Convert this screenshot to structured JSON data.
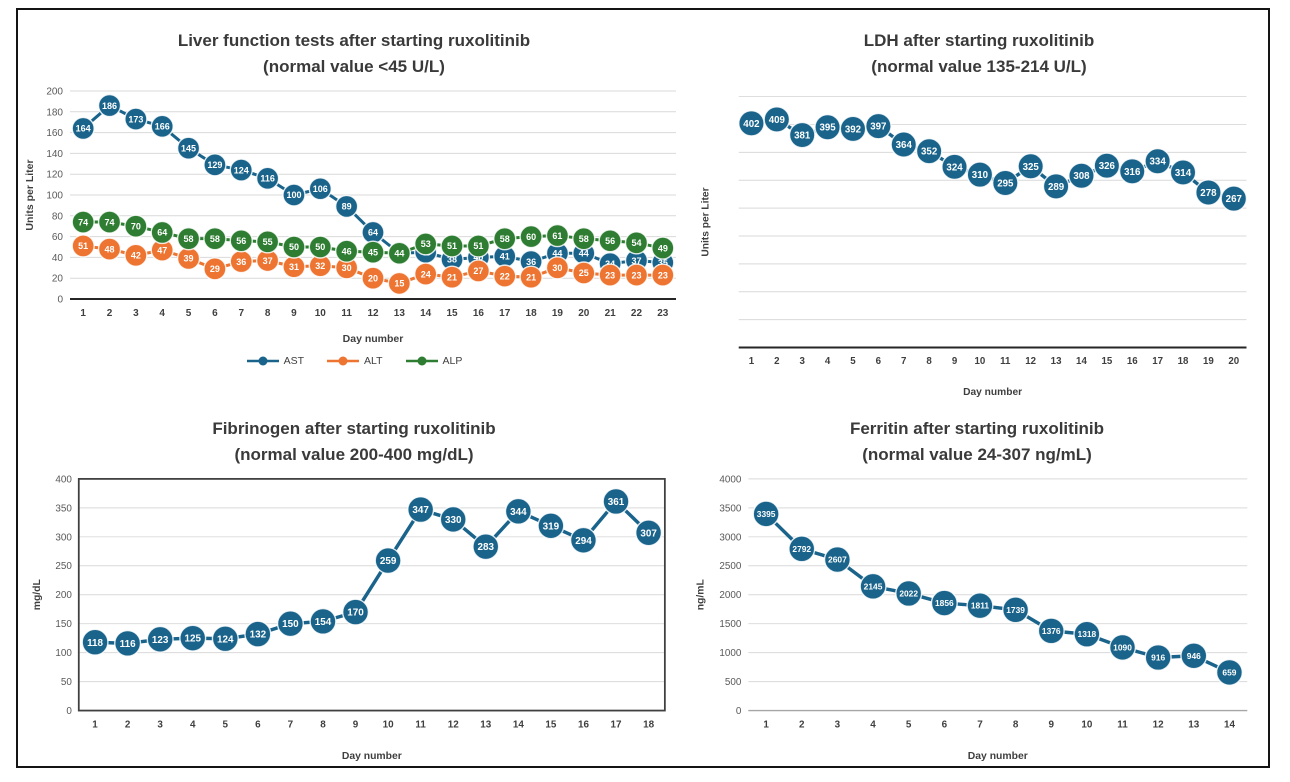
{
  "chart_data": [
    {
      "id": "liver-function",
      "type": "line",
      "title": "Liver function tests after starting ruxolitinib",
      "subtitle": "(normal value <45 U/L)",
      "xlabel": "Day number",
      "ylabel": "Units per Liter",
      "x": [
        1,
        2,
        3,
        4,
        5,
        6,
        7,
        8,
        9,
        10,
        11,
        12,
        13,
        14,
        15,
        16,
        17,
        18,
        19,
        20,
        21,
        22,
        23
      ],
      "series": [
        {
          "name": "AST",
          "color": "#1a648c",
          "values": [
            164,
            186,
            173,
            166,
            145,
            129,
            124,
            116,
            100,
            106,
            89,
            64,
            44,
            45,
            38,
            40,
            41,
            36,
            44,
            44,
            34,
            37,
            35
          ]
        },
        {
          "name": "ALT",
          "color": "#ed7431",
          "values": [
            51,
            48,
            42,
            47,
            39,
            29,
            36,
            37,
            31,
            32,
            30,
            20,
            15,
            24,
            21,
            27,
            22,
            21,
            30,
            25,
            23,
            23,
            23
          ]
        },
        {
          "name": "ALP",
          "color": "#2e7d32",
          "values": [
            74,
            74,
            70,
            64,
            58,
            58,
            56,
            55,
            50,
            50,
            46,
            45,
            44,
            53,
            51,
            51,
            58,
            60,
            61,
            58,
            56,
            54,
            49
          ]
        }
      ],
      "ylim": [
        0,
        200
      ],
      "ytick_step": 20,
      "show_ytick_labels": true,
      "grid": true,
      "legend_position": "bottom"
    },
    {
      "id": "ldh",
      "type": "line",
      "title": "LDH after starting ruxolitinib",
      "subtitle": "(normal value 135-214 U/L)",
      "xlabel": "Day number",
      "ylabel": "Units per Liter",
      "x": [
        1,
        2,
        3,
        4,
        5,
        6,
        7,
        8,
        9,
        10,
        11,
        12,
        13,
        14,
        15,
        16,
        17,
        18,
        19,
        20
      ],
      "series": [
        {
          "name": "LDH",
          "color": "#1a648c",
          "values": [
            402,
            409,
            381,
            395,
            392,
            397,
            364,
            352,
            324,
            310,
            295,
            325,
            289,
            308,
            326,
            316,
            334,
            314,
            278,
            267
          ]
        }
      ],
      "ylim": [
        0,
        450
      ],
      "ytick_step": 50,
      "show_ytick_labels": false,
      "grid": true,
      "legend_position": "none"
    },
    {
      "id": "fibrinogen",
      "type": "line",
      "title": "Fibrinogen after starting ruxolitinib",
      "subtitle": "(normal value 200-400 mg/dL)",
      "xlabel": "Day number",
      "ylabel": "mg/dL",
      "x": [
        1,
        2,
        3,
        4,
        5,
        6,
        7,
        8,
        9,
        10,
        11,
        12,
        13,
        14,
        15,
        16,
        17,
        18
      ],
      "series": [
        {
          "name": "Fibrinogen",
          "color": "#1a648c",
          "values": [
            118,
            116,
            123,
            125,
            124,
            132,
            150,
            154,
            170,
            259,
            347,
            330,
            283,
            344,
            319,
            294,
            361,
            307
          ]
        }
      ],
      "ylim": [
        0,
        400
      ],
      "ytick_step": 50,
      "show_ytick_labels": true,
      "grid": true,
      "legend_position": "none"
    },
    {
      "id": "ferritin",
      "type": "line",
      "title": "Ferritin after starting ruxolitinib",
      "subtitle": "(normal value 24-307 ng/mL)",
      "xlabel": "Day number",
      "ylabel": "ng/mL",
      "x": [
        1,
        2,
        3,
        4,
        5,
        6,
        7,
        8,
        9,
        10,
        11,
        12,
        13,
        14
      ],
      "series": [
        {
          "name": "Ferritin",
          "color": "#1a648c",
          "values": [
            3395,
            2792,
            2607,
            2145,
            2022,
            1856,
            1811,
            1739,
            1376,
            1318,
            1090,
            916,
            946,
            659
          ]
        }
      ],
      "ylim": [
        0,
        4000
      ],
      "ytick_step": 500,
      "show_ytick_labels": true,
      "grid": true,
      "legend_position": "none"
    }
  ],
  "style": {
    "grid_color": "#d9d9d9",
    "dark_axis_color": "#262626",
    "box_border_color": "#404040",
    "gray_axis_color": "#a6a6a6",
    "tick_label_color": "#595959",
    "x_label_color": "#3f3f3f",
    "title_color": "#3a3a3a"
  }
}
